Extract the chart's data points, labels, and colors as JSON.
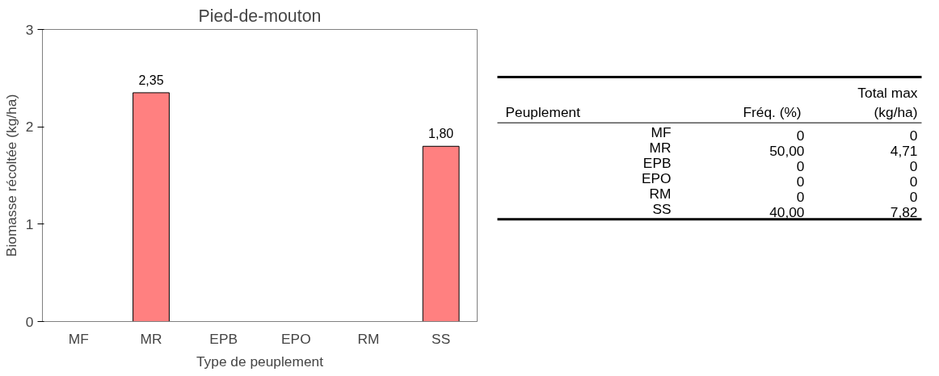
{
  "chart_data": [
    {
      "type": "bar",
      "title": "Pied-de-mouton",
      "xlabel": "Type de peuplement",
      "ylabel": "Biomasse récoltée (kg/ha)",
      "categories": [
        "MF",
        "MR",
        "EPB",
        "EPO",
        "RM",
        "SS"
      ],
      "values": [
        0,
        2.35,
        0,
        0,
        0,
        1.8
      ],
      "value_labels": [
        null,
        "2,35",
        null,
        null,
        null,
        "1,80"
      ],
      "color": "#ff8080",
      "ylim": [
        0,
        3
      ],
      "yticks": [
        0,
        1,
        2,
        3
      ],
      "grid": false
    },
    {
      "type": "other",
      "ylabel": "Peuplement",
      "data_labels": true,
      "categories": [
        "MF",
        "MR",
        "EPB",
        "EPO",
        "RM",
        "SS"
      ],
      "series": [
        {
          "name": "Fréq. (%)",
          "values": [
            0,
            50,
            0,
            0,
            0,
            40
          ],
          "value_labels": [
            "0",
            "50,00",
            "0",
            "0",
            "0",
            "40,00"
          ]
        },
        {
          "name": "Total max (kg/ha)",
          "values": [
            0,
            4.71,
            0,
            0,
            0,
            7.82
          ],
          "value_labels": [
            "0",
            "4,71",
            "0",
            "0",
            "0",
            "7,82"
          ]
        }
      ]
    }
  ]
}
